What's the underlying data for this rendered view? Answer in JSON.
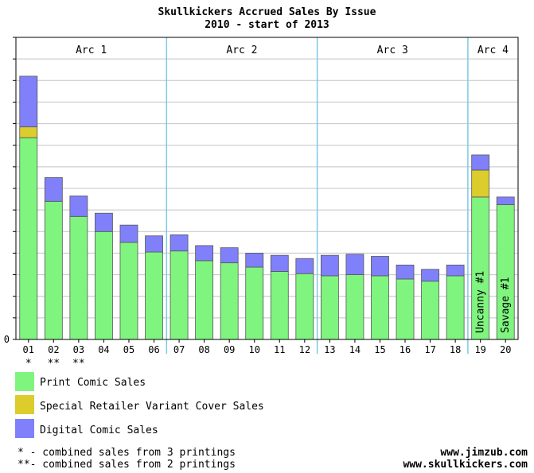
{
  "title_line1": "Skullkickers Accrued Sales By Issue",
  "title_line2": "2010 - start of 2013",
  "colors": {
    "print": "#7ff57f",
    "variant": "#dccc2c",
    "digital": "#8080fa",
    "grid": "#c4c4c4",
    "divider": "#7ccae6"
  },
  "chart_data": {
    "type": "bar",
    "stacked": true,
    "title": "Skullkickers Accrued Sales By Issue",
    "subtitle": "2010 - start of 2013",
    "categories": [
      "01",
      "02",
      "03",
      "04",
      "05",
      "06",
      "07",
      "08",
      "09",
      "10",
      "11",
      "12",
      "13",
      "14",
      "15",
      "16",
      "17",
      "18",
      "19",
      "20"
    ],
    "category_marks": [
      "*",
      "**",
      "**",
      "",
      "",
      "",
      "",
      "",
      "",
      "",
      "",
      "",
      "",
      "",
      "",
      "",
      "",
      "",
      "",
      ""
    ],
    "ylim": [
      0,
      14
    ],
    "y_tick_labels": [
      "0"
    ],
    "grid": true,
    "series": [
      {
        "name": "Print Comic Sales",
        "color": "#7ff57f",
        "values": [
          9.35,
          6.4,
          5.7,
          5.0,
          4.5,
          4.05,
          4.1,
          3.65,
          3.55,
          3.35,
          3.15,
          3.05,
          2.95,
          3.0,
          2.95,
          2.8,
          2.7,
          2.95,
          6.6,
          6.25
        ]
      },
      {
        "name": "Special Retailer Variant Cover Sales",
        "color": "#dccc2c",
        "values": [
          0.5,
          0,
          0,
          0,
          0,
          0,
          0,
          0,
          0,
          0,
          0,
          0,
          0,
          0,
          0,
          0,
          0,
          0,
          1.25,
          0
        ]
      },
      {
        "name": "Digital Comic Sales",
        "color": "#8080fa",
        "values": [
          2.35,
          1.1,
          0.95,
          0.85,
          0.8,
          0.75,
          0.75,
          0.7,
          0.7,
          0.65,
          0.75,
          0.7,
          0.95,
          0.95,
          0.9,
          0.65,
          0.55,
          0.5,
          0.7,
          0.35
        ]
      }
    ],
    "arcs": [
      {
        "label": "Arc 1",
        "start": 0,
        "end": 5
      },
      {
        "label": "Arc 2",
        "start": 6,
        "end": 11
      },
      {
        "label": "Arc 3",
        "start": 12,
        "end": 17
      },
      {
        "label": "Arc 4",
        "start": 18,
        "end": 19
      }
    ],
    "bar_labels": [
      {
        "index": 18,
        "text": "Uncanny #1"
      },
      {
        "index": 19,
        "text": "Savage #1"
      }
    ],
    "legend_position": "bottom-left"
  },
  "legend": [
    {
      "label": "Print Comic Sales",
      "color": "#7ff57f"
    },
    {
      "label": "Special Retailer Variant Cover Sales",
      "color": "#dccc2c"
    },
    {
      "label": "Digital Comic Sales",
      "color": "#8080fa"
    }
  ],
  "notes": [
    "* - combined sales from 3 printings",
    "**- combined sales from 2 printings"
  ],
  "sites": [
    "www.jimzub.com",
    "www.skullkickers.com"
  ]
}
